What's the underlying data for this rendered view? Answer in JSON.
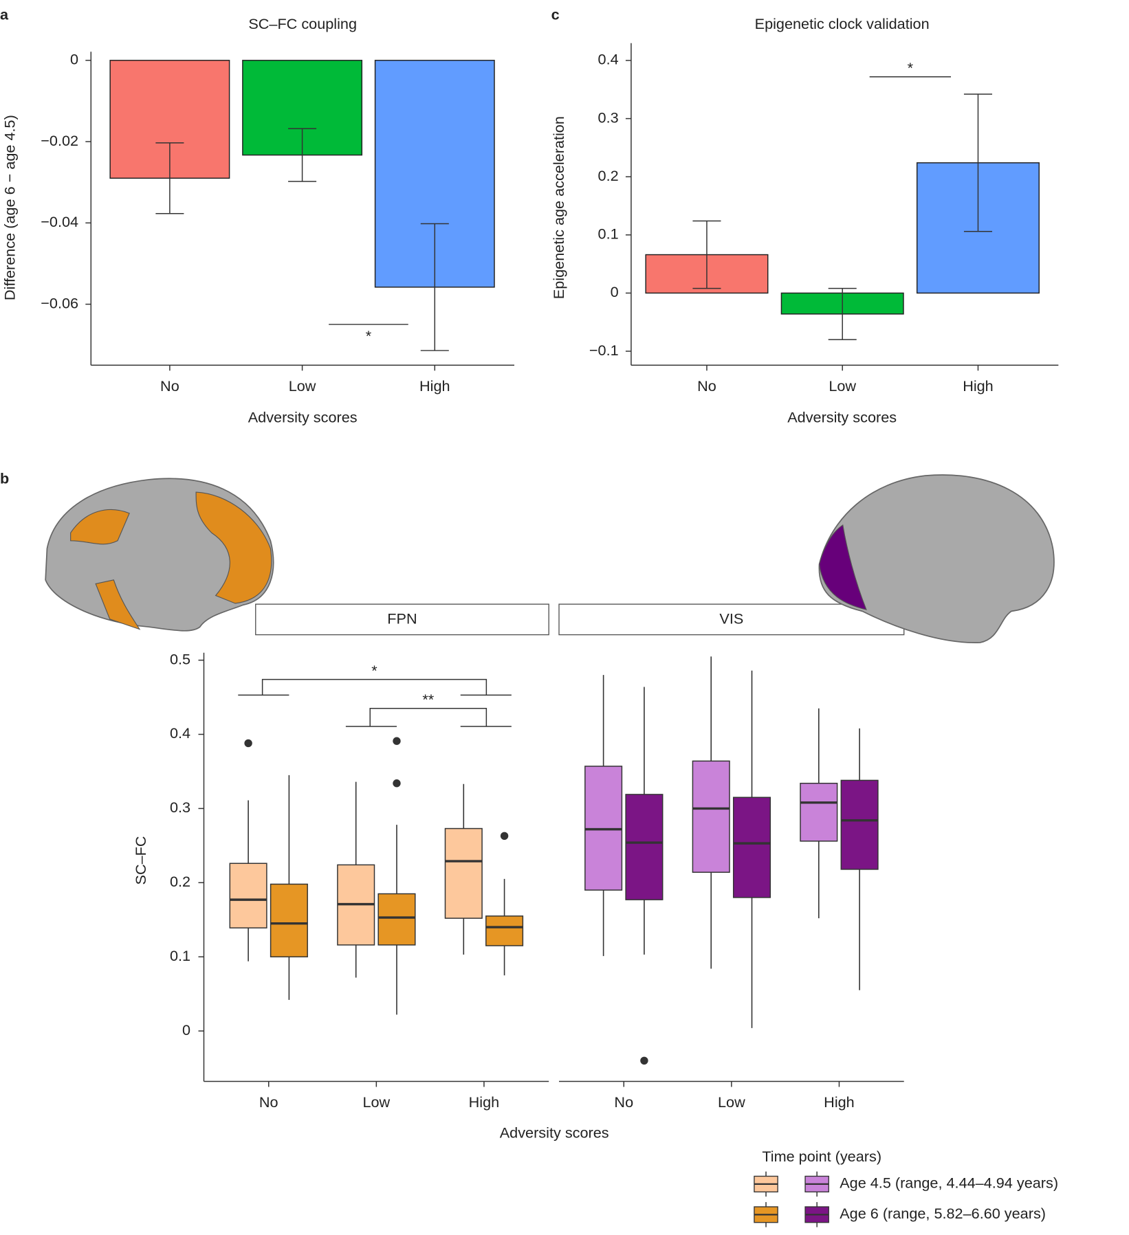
{
  "chart_data": [
    {
      "panel": "a",
      "type": "bar",
      "title": "SC–FC coupling",
      "x_label": "Adversity scores",
      "y_label": "Difference (age 6 − age 4.5)",
      "categories": [
        "No",
        "Low",
        "High"
      ],
      "values": [
        -0.029,
        -0.0233,
        -0.0558
      ],
      "errors": [
        0.0087,
        0.0065,
        0.0156
      ],
      "colors": [
        "#f8766d",
        "#00ba38",
        "#619cff"
      ],
      "ylim": [
        -0.075,
        0
      ],
      "yticks": [
        0,
        {
          "value": -0.02,
          "label": "−0.02"
        },
        {
          "value": -0.04,
          "label": "−0.04"
        },
        {
          "value": -0.06,
          "label": "−0.06"
        }
      ],
      "comparisons": [
        {
          "label": "*",
          "between": [
            "Low",
            "High"
          ]
        }
      ]
    },
    {
      "panel": "c",
      "type": "bar",
      "title": "Epigenetic clock validation",
      "x_label": "Adversity scores",
      "y_label": "Epigenetic age acceleration",
      "categories": [
        "No",
        "Low",
        "High"
      ],
      "values": [
        0.066,
        -0.036,
        0.224
      ],
      "errors": [
        0.058,
        0.044,
        0.118
      ],
      "colors": [
        "#f8766d",
        "#00ba38",
        "#619cff"
      ],
      "ylim": [
        -0.124,
        0.415
      ],
      "yticks": [
        0.4,
        0.3,
        0.2,
        0.1,
        0,
        {
          "value": -0.1,
          "label": "−0.1"
        }
      ],
      "comparisons": [
        {
          "label": "*",
          "between": [
            "Low",
            "High"
          ]
        }
      ]
    },
    {
      "panel": "b",
      "type": "box",
      "x_label": "Adversity scores",
      "y_label": "SC–FC",
      "facets": [
        "FPN",
        "VIS"
      ],
      "categories": [
        "No",
        "Low",
        "High"
      ],
      "ylim": [
        -0.068,
        0.51
      ],
      "yticks": [
        0,
        0.1,
        0.2,
        0.3,
        0.4,
        0.5
      ],
      "legend_title": "Time point (years)",
      "series": [
        {
          "name": "Age 4.5 (range, 4.44–4.94 years)",
          "colors": [
            "#fdc89c",
            "#c983d9"
          ],
          "data": [
            [
              {
                "whislo": 0.094,
                "q1": 0.139,
                "med": 0.177,
                "q3": 0.226,
                "whishi": 0.311,
                "fliers": [
                  0.388
                ]
              },
              {
                "whislo": 0.072,
                "q1": 0.116,
                "med": 0.171,
                "q3": 0.224,
                "whishi": 0.336,
                "fliers": []
              },
              {
                "whislo": 0.103,
                "q1": 0.152,
                "med": 0.229,
                "q3": 0.273,
                "whishi": 0.333,
                "fliers": []
              }
            ],
            [
              {
                "whislo": 0.101,
                "q1": 0.19,
                "med": 0.272,
                "q3": 0.357,
                "whishi": 0.48,
                "fliers": []
              },
              {
                "whislo": 0.084,
                "q1": 0.214,
                "med": 0.3,
                "q3": 0.364,
                "whishi": 0.505,
                "fliers": []
              },
              {
                "whislo": 0.152,
                "q1": 0.256,
                "med": 0.308,
                "q3": 0.334,
                "whishi": 0.435,
                "fliers": []
              }
            ]
          ]
        },
        {
          "name": "Age 6 (range, 5.82–6.60 years)",
          "colors": [
            "#e69624",
            "#7b1585"
          ],
          "data": [
            [
              {
                "whislo": 0.042,
                "q1": 0.1,
                "med": 0.145,
                "q3": 0.198,
                "whishi": 0.345,
                "fliers": []
              },
              {
                "whislo": 0.022,
                "q1": 0.116,
                "med": 0.153,
                "q3": 0.185,
                "whishi": 0.278,
                "fliers": [
                  0.391,
                  0.334
                ]
              },
              {
                "whislo": 0.075,
                "q1": 0.115,
                "med": 0.14,
                "q3": 0.155,
                "whishi": 0.205,
                "fliers": [
                  0.263
                ]
              }
            ],
            [
              {
                "whislo": 0.103,
                "q1": 0.177,
                "med": 0.254,
                "q3": 0.319,
                "whishi": 0.464,
                "fliers": [
                  -0.04
                ]
              },
              {
                "whislo": 0.004,
                "q1": 0.18,
                "med": 0.253,
                "q3": 0.315,
                "whishi": 0.486,
                "fliers": []
              },
              {
                "whislo": 0.055,
                "q1": 0.218,
                "med": 0.284,
                "q3": 0.338,
                "whishi": 0.408,
                "fliers": []
              }
            ]
          ]
        }
      ],
      "comparisons": [
        {
          "label": "*",
          "facet": "FPN",
          "between": [
            "No",
            "High"
          ]
        },
        {
          "label": "**",
          "facet": "FPN",
          "between": [
            "Low",
            "High"
          ]
        }
      ]
    }
  ]
}
